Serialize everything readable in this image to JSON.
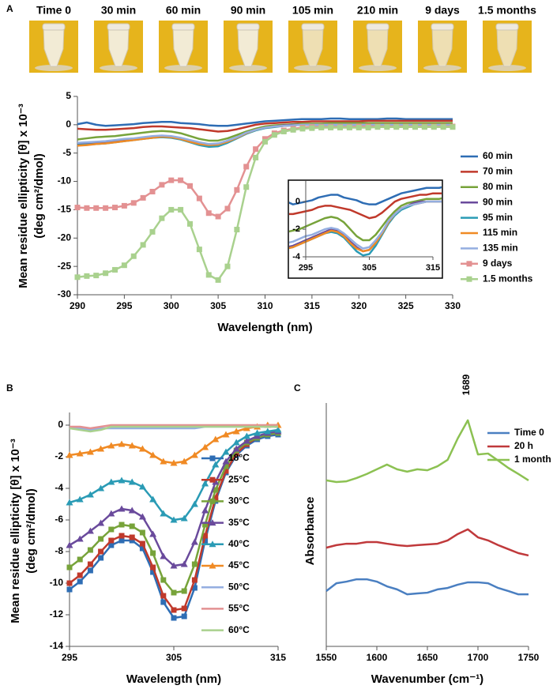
{
  "panel_labels": [
    "A",
    "B",
    "C"
  ],
  "photo_labels": [
    "Time 0",
    "30 min",
    "60 min",
    "90 min",
    "105 min",
    "210 min",
    "9 days",
    "1.5 months"
  ],
  "chart_data": [
    {
      "type": "line",
      "x_label": "Wavelength (nm)",
      "y_label": [
        "Mean residue ellipticity [θ] x 10⁻³",
        "(deg cm²/dmol)"
      ],
      "x": [
        290,
        291,
        292,
        293,
        294,
        295,
        296,
        297,
        298,
        299,
        300,
        301,
        302,
        303,
        304,
        305,
        306,
        307,
        308,
        309,
        310,
        311,
        312,
        313,
        314,
        315,
        316,
        317,
        318,
        319,
        320,
        321,
        322,
        323,
        324,
        325,
        326,
        327,
        328,
        329,
        330
      ],
      "xlim": [
        290,
        330
      ],
      "xticks": [
        290,
        295,
        300,
        305,
        310,
        315,
        320,
        325,
        330
      ],
      "ylim": [
        -30,
        5
      ],
      "yticks": [
        -30,
        -25,
        -20,
        -15,
        -10,
        -5,
        0,
        5
      ],
      "legend": "right",
      "series": [
        {
          "name": "60 min",
          "color": "#2e6db4",
          "values": [
            0.1,
            0.4,
            0,
            -0.2,
            -0.1,
            0,
            0.1,
            0.3,
            0.4,
            0.5,
            0.5,
            0.3,
            0.2,
            0.1,
            -0.1,
            -0.2,
            -0.2,
            0,
            0.2,
            0.4,
            0.6,
            0.7,
            0.8,
            0.9,
            1,
            1,
            1,
            1.1,
            1.1,
            1,
            1,
            1,
            1,
            1.1,
            1.1,
            1,
            1,
            1,
            1,
            1,
            1
          ]
        },
        {
          "name": "70 min",
          "color": "#c0392b",
          "values": [
            -0.7,
            -0.8,
            -0.9,
            -0.9,
            -0.8,
            -0.7,
            -0.6,
            -0.4,
            -0.3,
            -0.3,
            -0.4,
            -0.5,
            -0.6,
            -0.8,
            -1.0,
            -1.2,
            -1.1,
            -0.8,
            -0.4,
            0,
            0.2,
            0.3,
            0.4,
            0.5,
            0.5,
            0.6,
            0.6,
            0.6,
            0.6,
            0.6,
            0.6,
            0.7,
            0.7,
            0.7,
            0.7,
            0.7,
            0.7,
            0.7,
            0.7,
            0.7,
            0.7
          ]
        },
        {
          "name": "80 min",
          "color": "#77a33a",
          "values": [
            -2.6,
            -2.4,
            -2.2,
            -2.1,
            -2.0,
            -1.8,
            -1.6,
            -1.4,
            -1.2,
            -1.1,
            -1.2,
            -1.5,
            -2.0,
            -2.5,
            -2.8,
            -2.8,
            -2.4,
            -1.8,
            -1.2,
            -0.7,
            -0.3,
            -0.1,
            0,
            0.1,
            0.2,
            0.2,
            0.2,
            0.3,
            0.3,
            0.3,
            0.3,
            0.3,
            0.3,
            0.3,
            0.3,
            0.3,
            0.3,
            0.3,
            0.3,
            0.3,
            0.3
          ]
        },
        {
          "name": "90 min",
          "color": "#6a4a9c",
          "values": [
            -3.5,
            -3.4,
            -3.3,
            -3.2,
            -3.0,
            -2.8,
            -2.6,
            -2.4,
            -2.2,
            -2.0,
            -2.1,
            -2.4,
            -2.9,
            -3.3,
            -3.6,
            -3.5,
            -3.0,
            -2.3,
            -1.5,
            -0.9,
            -0.5,
            -0.3,
            -0.1,
            0,
            0,
            0,
            0,
            0,
            0,
            0,
            0,
            0,
            0,
            0,
            0,
            0,
            0,
            0,
            0,
            0,
            0
          ]
        },
        {
          "name": "95 min",
          "color": "#2a9bb5",
          "values": [
            -3.6,
            -3.5,
            -3.4,
            -3.3,
            -3.1,
            -2.9,
            -2.7,
            -2.5,
            -2.3,
            -2.2,
            -2.3,
            -2.6,
            -3.1,
            -3.6,
            -3.9,
            -3.8,
            -3.2,
            -2.4,
            -1.6,
            -1.0,
            -0.6,
            -0.4,
            -0.2,
            -0.1,
            0,
            0,
            0,
            0,
            0,
            0,
            0,
            0,
            0,
            0,
            0,
            0,
            0,
            0,
            0,
            0,
            0
          ]
        },
        {
          "name": "115 min",
          "color": "#f08a24",
          "values": [
            -3.7,
            -3.6,
            -3.4,
            -3.3,
            -3.1,
            -2.9,
            -2.7,
            -2.5,
            -2.3,
            -2.1,
            -2.2,
            -2.5,
            -3.0,
            -3.4,
            -3.6,
            -3.5,
            -3.0,
            -2.3,
            -1.5,
            -0.9,
            -0.5,
            -0.3,
            -0.2,
            -0.1,
            0,
            0,
            0,
            0,
            0,
            0,
            0,
            0,
            0,
            0,
            0,
            0,
            0,
            0,
            0,
            0,
            0
          ]
        },
        {
          "name": "135 min",
          "color": "#94aee0",
          "values": [
            -3.2,
            -3.1,
            -3.0,
            -2.9,
            -2.7,
            -2.5,
            -2.4,
            -2.2,
            -2.0,
            -1.9,
            -2.0,
            -2.3,
            -2.7,
            -3.1,
            -3.4,
            -3.3,
            -2.8,
            -2.2,
            -1.4,
            -0.9,
            -0.5,
            -0.3,
            -0.2,
            -0.1,
            0,
            0,
            0,
            0,
            0,
            0,
            0,
            0,
            0,
            0,
            0,
            0,
            0,
            0,
            0,
            0,
            0
          ]
        },
        {
          "name": "9 days",
          "color": "#e39192",
          "marker": "square",
          "values": [
            -14.6,
            -14.7,
            -14.7,
            -14.7,
            -14.6,
            -14.3,
            -13.8,
            -12.9,
            -11.8,
            -10.6,
            -9.8,
            -9.8,
            -10.8,
            -13.0,
            -15.6,
            -16.2,
            -14.8,
            -11.5,
            -7.4,
            -4.3,
            -2.5,
            -1.5,
            -1.0,
            -0.7,
            -0.5,
            -0.4,
            -0.4,
            -0.4,
            -0.4,
            -0.4,
            -0.3,
            -0.3,
            -0.3,
            -0.3,
            -0.3,
            -0.3,
            -0.3,
            -0.3,
            -0.3,
            -0.3,
            -0.3
          ]
        },
        {
          "name": "1.5 months",
          "color": "#a9d18e",
          "marker": "square",
          "values": [
            -26.9,
            -26.7,
            -26.6,
            -26.2,
            -25.6,
            -24.8,
            -23.2,
            -21.2,
            -18.9,
            -16.5,
            -15.0,
            -15.0,
            -17.5,
            -22.0,
            -26.5,
            -27.4,
            -25.0,
            -18.5,
            -11.0,
            -5.8,
            -3.0,
            -1.8,
            -1.2,
            -0.9,
            -0.7,
            -0.6,
            -0.5,
            -0.5,
            -0.5,
            -0.5,
            -0.5,
            -0.5,
            -0.4,
            -0.4,
            -0.4,
            -0.4,
            -0.4,
            -0.4,
            -0.4,
            -0.4,
            -0.4
          ]
        }
      ],
      "inset": {
        "xlim": [
          295,
          315
        ],
        "xticks": [
          295,
          305,
          315
        ],
        "ylim": [
          -4,
          1.5
        ],
        "yticks": [
          -4,
          -2,
          0
        ]
      }
    },
    {
      "type": "line",
      "x_label": "Wavelength (nm)",
      "y_label": [
        "Mean residue ellipticity [θ] x 10⁻³",
        "(deg cm²/dmol)"
      ],
      "x": [
        295,
        296,
        297,
        298,
        299,
        300,
        301,
        302,
        303,
        304,
        305,
        306,
        307,
        308,
        309,
        310,
        311,
        312,
        313,
        314,
        315
      ],
      "xlim": [
        295,
        315
      ],
      "xticks": [
        295,
        305,
        315
      ],
      "ylim": [
        -14,
        0
      ],
      "yticks": [
        -14,
        -12,
        -10,
        -8,
        -6,
        -4,
        -2,
        0
      ],
      "legend": "inside",
      "series": [
        {
          "name": "18°C",
          "color": "#2e6db4",
          "marker": "square",
          "values": [
            -10.4,
            -9.9,
            -9.2,
            -8.4,
            -7.6,
            -7.3,
            -7.3,
            -7.8,
            -9.3,
            -11.2,
            -12.2,
            -12.1,
            -10.3,
            -7.3,
            -4.8,
            -3.0,
            -1.9,
            -1.3,
            -0.9,
            -0.7,
            -0.6
          ]
        },
        {
          "name": "25°C",
          "color": "#c0392b",
          "marker": "square",
          "values": [
            -10.0,
            -9.5,
            -8.8,
            -8.0,
            -7.3,
            -7.0,
            -7.1,
            -7.5,
            -9.0,
            -10.8,
            -11.7,
            -11.6,
            -9.8,
            -7.0,
            -4.6,
            -2.9,
            -1.8,
            -1.2,
            -0.8,
            -0.6,
            -0.5
          ]
        },
        {
          "name": "30°C",
          "color": "#77a33a",
          "marker": "square",
          "values": [
            -9.0,
            -8.5,
            -7.9,
            -7.2,
            -6.6,
            -6.3,
            -6.4,
            -6.8,
            -8.1,
            -9.8,
            -10.6,
            -10.5,
            -8.8,
            -6.3,
            -4.1,
            -2.6,
            -1.6,
            -1.1,
            -0.8,
            -0.6,
            -0.5
          ]
        },
        {
          "name": "35°C",
          "color": "#6a4a9c",
          "marker": "triangle",
          "values": [
            -7.6,
            -7.2,
            -6.7,
            -6.2,
            -5.6,
            -5.3,
            -5.4,
            -5.8,
            -6.9,
            -8.3,
            -8.9,
            -8.8,
            -7.4,
            -5.4,
            -3.6,
            -2.3,
            -1.5,
            -1.0,
            -0.7,
            -0.5,
            -0.4
          ]
        },
        {
          "name": "40°C",
          "color": "#2a9bb5",
          "marker": "triangle",
          "values": [
            -4.9,
            -4.7,
            -4.4,
            -4.0,
            -3.6,
            -3.5,
            -3.6,
            -3.9,
            -4.7,
            -5.6,
            -6.0,
            -5.9,
            -5.0,
            -3.7,
            -2.5,
            -1.7,
            -1.1,
            -0.7,
            -0.5,
            -0.4,
            -0.3
          ]
        },
        {
          "name": "45°C",
          "color": "#f08a24",
          "marker": "triangle",
          "values": [
            -1.9,
            -1.8,
            -1.7,
            -1.5,
            -1.3,
            -1.2,
            -1.3,
            -1.5,
            -1.9,
            -2.3,
            -2.4,
            -2.3,
            -1.9,
            -1.4,
            -0.9,
            -0.6,
            -0.4,
            -0.2,
            -0.1,
            0,
            0
          ]
        },
        {
          "name": "50°C",
          "color": "#94aee0",
          "values": [
            -0.2,
            -0.2,
            -0.3,
            -0.2,
            -0.2,
            -0.2,
            -0.2,
            -0.2,
            -0.2,
            -0.2,
            -0.2,
            -0.2,
            -0.2,
            -0.1,
            -0.1,
            -0.1,
            -0.1,
            -0.1,
            -0.1,
            -0.1,
            -0.1
          ]
        },
        {
          "name": "55°C",
          "color": "#e39192",
          "values": [
            -0.1,
            -0.1,
            -0.2,
            -0.1,
            0,
            0,
            0,
            0,
            0,
            0,
            0,
            0,
            0,
            0,
            0,
            0,
            0,
            0,
            0,
            0,
            0
          ]
        },
        {
          "name": "60°C",
          "color": "#a9d18e",
          "values": [
            -0.2,
            -0.3,
            -0.4,
            -0.3,
            -0.1,
            -0.1,
            -0.1,
            -0.1,
            -0.1,
            -0.1,
            -0.1,
            -0.1,
            -0.1,
            -0.1,
            -0.1,
            -0.1,
            -0.1,
            -0.1,
            -0.1,
            -0.1,
            -0.1
          ]
        }
      ]
    },
    {
      "type": "line",
      "x_label": "Wavenumber (cm⁻¹)",
      "y_label": [
        "Absorbance"
      ],
      "x": [
        1550,
        1560,
        1570,
        1580,
        1590,
        1600,
        1610,
        1620,
        1630,
        1640,
        1650,
        1660,
        1670,
        1680,
        1690,
        1700,
        1710,
        1720,
        1730,
        1740,
        1750
      ],
      "xlim": [
        1550,
        1750
      ],
      "xticks": [
        1550,
        1600,
        1650,
        1700,
        1750
      ],
      "ylim": [
        0,
        10
      ],
      "legend": "upper right",
      "annotation": {
        "text": "1689",
        "x": 1689
      },
      "series": [
        {
          "name": "Time 0",
          "color": "#4a7fc1",
          "values": [
            2.35,
            2.68,
            2.75,
            2.85,
            2.85,
            2.75,
            2.55,
            2.42,
            2.21,
            2.25,
            2.28,
            2.42,
            2.48,
            2.62,
            2.72,
            2.72,
            2.68,
            2.48,
            2.35,
            2.21,
            2.21
          ]
        },
        {
          "name": "20 h",
          "color": "#c0393b",
          "values": [
            4.19,
            4.3,
            4.36,
            4.36,
            4.43,
            4.43,
            4.36,
            4.3,
            4.26,
            4.3,
            4.33,
            4.36,
            4.5,
            4.77,
            4.97,
            4.63,
            4.5,
            4.3,
            4.13,
            3.96,
            3.86
          ]
        },
        {
          "name": "1 month",
          "color": "#8cc152",
          "values": [
            7.05,
            6.98,
            7.01,
            7.15,
            7.32,
            7.52,
            7.72,
            7.52,
            7.42,
            7.52,
            7.48,
            7.65,
            7.92,
            8.83,
            9.6,
            8.15,
            8.19,
            7.89,
            7.58,
            7.32,
            7.05
          ]
        }
      ]
    }
  ]
}
